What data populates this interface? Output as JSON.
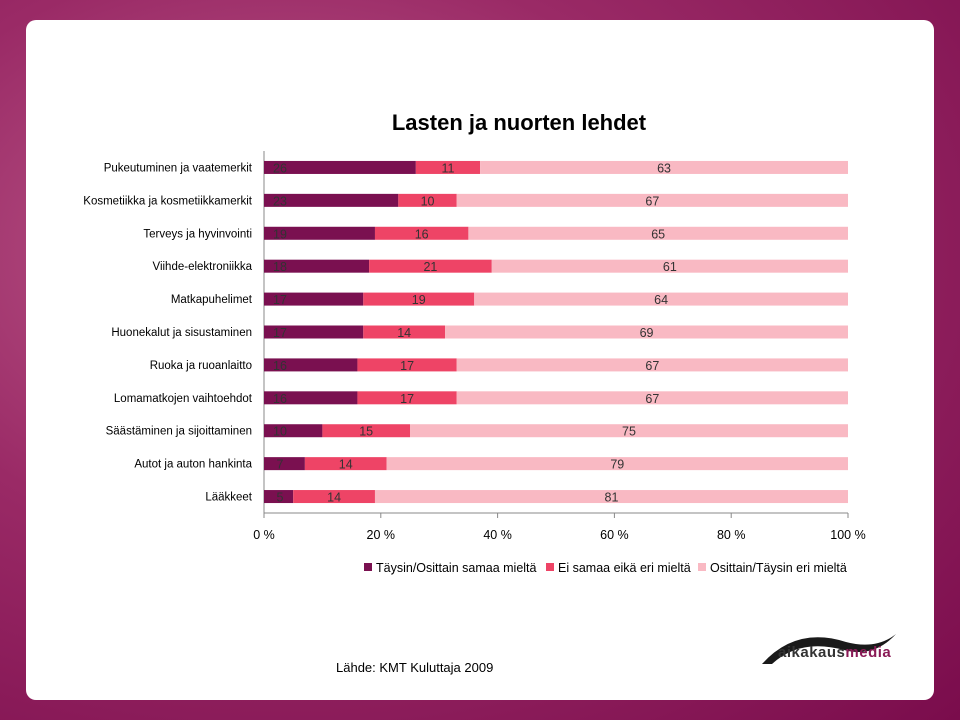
{
  "colors": {
    "agree": "#7a1050",
    "neutral": "#ee4466",
    "disagree": "#f9b9c3"
  },
  "chart_data": {
    "type": "stacked-bar-horizontal-percent",
    "title": "Lasten ja nuorten lehdet",
    "categories": [
      "Pukeutuminen ja vaatemerkit",
      "Kosmetiikka ja kosmetiikkamerkit",
      "Terveys ja hyvinvointi",
      "Viihde-elektroniikka",
      "Matkapuhelimet",
      "Huonekalut ja sisustaminen",
      "Ruoka ja ruoanlaitto",
      "Lomamatkojen vaihtoehdot",
      "Säästäminen ja sijoittaminen",
      "Autot ja auton hankinta",
      "Lääkkeet"
    ],
    "series": [
      {
        "name": "Täysin/Osittain samaa mieltä",
        "values": [
          26,
          23,
          19,
          18,
          17,
          17,
          16,
          16,
          10,
          7,
          5
        ]
      },
      {
        "name": "Ei samaa eikä eri mieltä",
        "values": [
          11,
          10,
          16,
          21,
          19,
          14,
          17,
          17,
          15,
          14,
          14
        ]
      },
      {
        "name": "Osittain/Täysin eri mieltä",
        "values": [
          63,
          67,
          65,
          61,
          64,
          69,
          67,
          67,
          75,
          79,
          81
        ]
      }
    ],
    "xticks": [
      "0 %",
      "20 %",
      "40 %",
      "60 %",
      "80 %",
      "100 %"
    ],
    "xlim": [
      0,
      100
    ],
    "legend": "bottom"
  },
  "footer": {
    "source": "Lähde: KMT Kuluttaja 2009",
    "logo_prefix": "aikakaus",
    "logo_accent": "media"
  }
}
